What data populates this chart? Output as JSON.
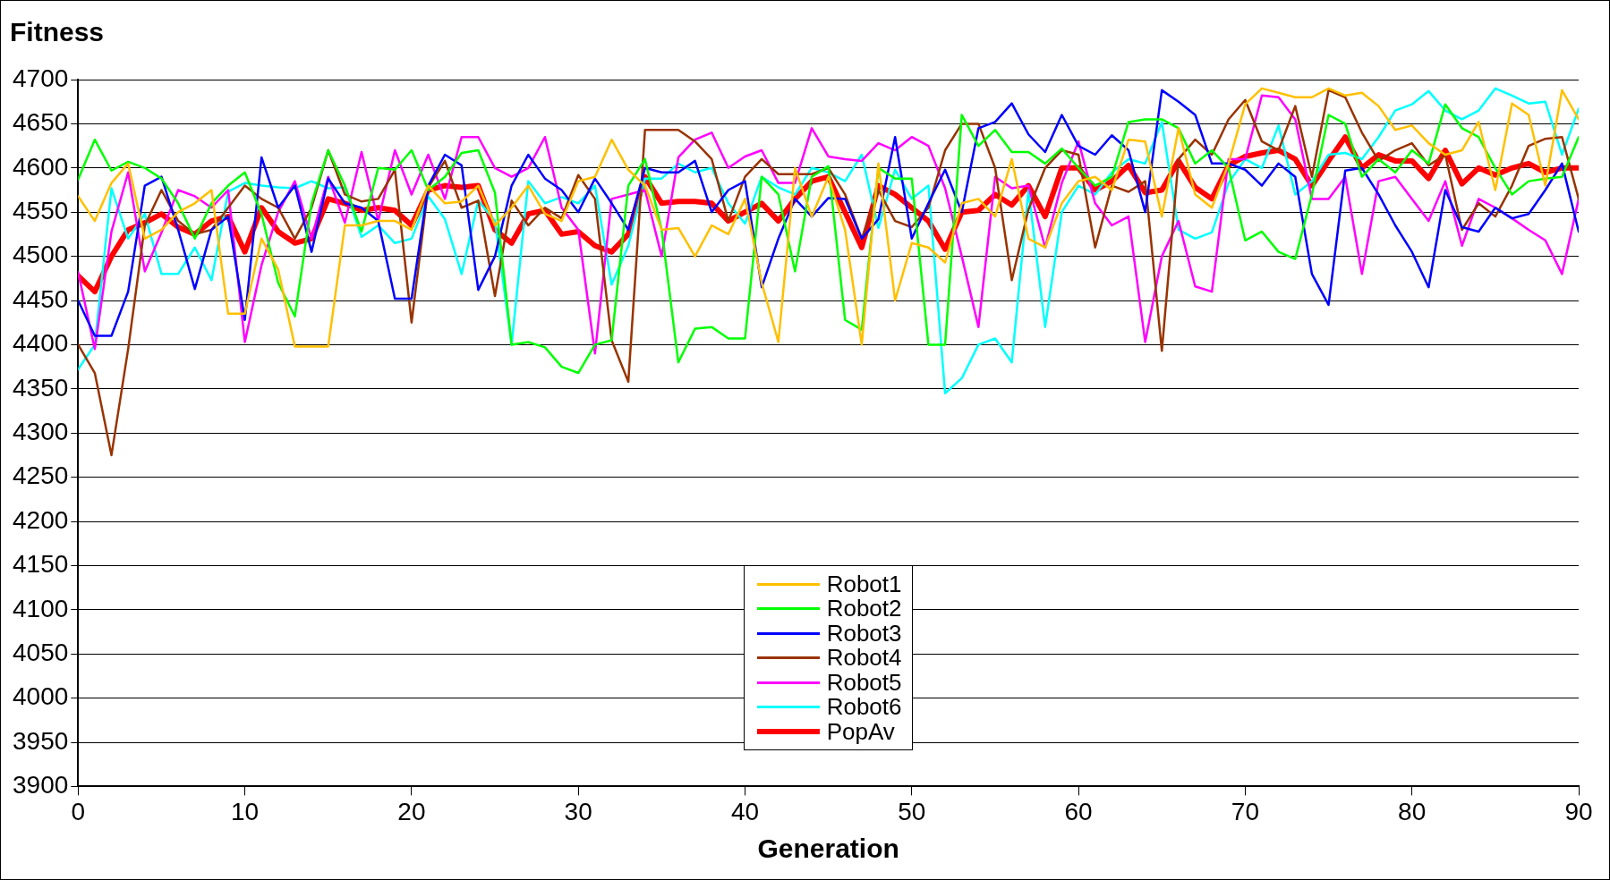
{
  "chart_data": {
    "type": "line",
    "xlabel": "Generation",
    "ylabel": "Fitness",
    "x": [
      0,
      1,
      2,
      3,
      4,
      5,
      6,
      7,
      8,
      9,
      10,
      11,
      12,
      13,
      14,
      15,
      16,
      17,
      18,
      19,
      20,
      21,
      22,
      23,
      24,
      25,
      26,
      27,
      28,
      29,
      30,
      31,
      32,
      33,
      34,
      35,
      36,
      37,
      38,
      39,
      40,
      41,
      42,
      43,
      44,
      45,
      46,
      47,
      48,
      49,
      50,
      51,
      52,
      53,
      54,
      55,
      56,
      57,
      58,
      59,
      60,
      61,
      62,
      63,
      64,
      65,
      66,
      67,
      68,
      69,
      70,
      71,
      72,
      73,
      74,
      75,
      76,
      77,
      78,
      79,
      80,
      81,
      82,
      83,
      84,
      85,
      86,
      87,
      88,
      89,
      90
    ],
    "xlim": [
      0,
      90
    ],
    "xticks": [
      0,
      10,
      20,
      30,
      40,
      50,
      60,
      70,
      80,
      90
    ],
    "ylim": [
      3900,
      4700
    ],
    "yticks": [
      3900,
      3950,
      4000,
      4050,
      4100,
      4150,
      4200,
      4250,
      4300,
      4350,
      4400,
      4450,
      4500,
      4550,
      4600,
      4650,
      4700
    ],
    "grid": "y",
    "legend": "bottom",
    "marker": "none",
    "line_style": "solid",
    "series": [
      {
        "name": "Robot1",
        "color": "#ffc000",
        "values": [
          4568,
          4540,
          4583,
          4605,
          4520,
          4530,
          4550,
          4560,
          4575,
          4435,
          4435,
          4520,
          4485,
          4398,
          4398,
          4398,
          4535,
          4535,
          4540,
          4540,
          4530,
          4580,
          4560,
          4562,
          4580,
          4535,
          4555,
          4580,
          4548,
          4540,
          4585,
          4590,
          4632,
          4598,
          4580,
          4530,
          4532,
          4500,
          4535,
          4525,
          4565,
          4470,
          4403,
          4600,
          4545,
          4590,
          4530,
          4400,
          4605,
          4450,
          4515,
          4510,
          4493,
          4560,
          4565,
          4545,
          4610,
          4520,
          4510,
          4560,
          4585,
          4590,
          4575,
          4632,
          4630,
          4545,
          4645,
          4570,
          4555,
          4605,
          4672,
          4690,
          4685,
          4680,
          4680,
          4690,
          4682,
          4685,
          4670,
          4643,
          4648,
          4628,
          4615,
          4620,
          4652,
          4575,
          4673,
          4660,
          4580,
          4688,
          4655
        ]
      },
      {
        "name": "Robot2",
        "color": "#00ff00",
        "values": [
          4587,
          4632,
          4597,
          4607,
          4600,
          4588,
          4560,
          4520,
          4560,
          4580,
          4595,
          4548,
          4470,
          4432,
          4560,
          4620,
          4580,
          4528,
          4600,
          4598,
          4620,
          4575,
          4590,
          4617,
          4620,
          4572,
          4400,
          4403,
          4397,
          4375,
          4368,
          4400,
          4405,
          4580,
          4610,
          4530,
          4380,
          4418,
          4420,
          4407,
          4407,
          4590,
          4570,
          4483,
          4590,
          4602,
          4428,
          4417,
          4600,
          4588,
          4588,
          4400,
          4400,
          4660,
          4625,
          4643,
          4618,
          4618,
          4605,
          4622,
          4600,
          4580,
          4590,
          4652,
          4655,
          4655,
          4645,
          4605,
          4620,
          4600,
          4518,
          4528,
          4505,
          4497,
          4570,
          4660,
          4650,
          4590,
          4610,
          4595,
          4620,
          4605,
          4672,
          4645,
          4635,
          4600,
          4570,
          4585,
          4588,
          4590,
          4635
        ]
      },
      {
        "name": "Robot3",
        "color": "#0000ff",
        "values": [
          4450,
          4410,
          4410,
          4460,
          4580,
          4590,
          4530,
          4463,
          4530,
          4545,
          4428,
          4612,
          4555,
          4580,
          4505,
          4588,
          4560,
          4555,
          4540,
          4452,
          4452,
          4580,
          4615,
          4603,
          4462,
          4500,
          4580,
          4615,
          4588,
          4575,
          4550,
          4588,
          4560,
          4530,
          4600,
          4595,
          4595,
          4608,
          4550,
          4575,
          4585,
          4465,
          4520,
          4565,
          4545,
          4566,
          4565,
          4520,
          4542,
          4635,
          4520,
          4560,
          4598,
          4550,
          4645,
          4652,
          4673,
          4638,
          4618,
          4660,
          4625,
          4615,
          4637,
          4620,
          4550,
          4688,
          4675,
          4660,
          4605,
          4605,
          4598,
          4580,
          4605,
          4590,
          4480,
          4445,
          4597,
          4600,
          4570,
          4535,
          4505,
          4465,
          4575,
          4533,
          4528,
          4555,
          4543,
          4548,
          4575,
          4605,
          4528
        ]
      },
      {
        "name": "Robot4",
        "color": "#993300",
        "values": [
          4400,
          4368,
          4275,
          4395,
          4535,
          4575,
          4540,
          4525,
          4530,
          4555,
          4580,
          4565,
          4555,
          4520,
          4555,
          4620,
          4570,
          4562,
          4565,
          4598,
          4425,
          4578,
          4608,
          4555,
          4563,
          4455,
          4563,
          4535,
          4555,
          4543,
          4592,
          4565,
          4405,
          4358,
          4643,
          4643,
          4643,
          4630,
          4610,
          4540,
          4590,
          4610,
          4593,
          4593,
          4593,
          4600,
          4570,
          4520,
          4575,
          4540,
          4533,
          4555,
          4620,
          4650,
          4650,
          4600,
          4473,
          4553,
          4600,
          4620,
          4615,
          4510,
          4580,
          4573,
          4585,
          4393,
          4610,
          4632,
          4615,
          4655,
          4677,
          4630,
          4620,
          4670,
          4590,
          4688,
          4680,
          4640,
          4608,
          4620,
          4628,
          4603,
          4615,
          4530,
          4560,
          4545,
          4580,
          4625,
          4633,
          4635,
          4565
        ]
      },
      {
        "name": "Robot5",
        "color": "#ff00ff",
        "values": [
          4482,
          4395,
          4528,
          4595,
          4483,
          4527,
          4575,
          4568,
          4555,
          4575,
          4403,
          4490,
          4550,
          4585,
          4520,
          4590,
          4538,
          4618,
          4540,
          4620,
          4570,
          4615,
          4565,
          4635,
          4635,
          4600,
          4590,
          4600,
          4635,
          4555,
          4530,
          4390,
          4565,
          4570,
          4575,
          4500,
          4612,
          4632,
          4640,
          4600,
          4613,
          4620,
          4583,
          4583,
          4645,
          4613,
          4610,
          4608,
          4628,
          4620,
          4635,
          4625,
          4577,
          4500,
          4420,
          4590,
          4577,
          4580,
          4510,
          4583,
          4630,
          4560,
          4535,
          4545,
          4403,
          4500,
          4540,
          4466,
          4460,
          4610,
          4610,
          4682,
          4680,
          4655,
          4565,
          4565,
          4590,
          4480,
          4585,
          4590,
          4565,
          4540,
          4585,
          4512,
          4565,
          4555,
          4543,
          4530,
          4518,
          4480,
          4565
        ]
      },
      {
        "name": "Robot6",
        "color": "#00ffff",
        "values": [
          4372,
          4400,
          4577,
          4520,
          4548,
          4480,
          4480,
          4510,
          4473,
          4573,
          4583,
          4580,
          4578,
          4577,
          4585,
          4577,
          4578,
          4522,
          4535,
          4515,
          4520,
          4568,
          4542,
          4480,
          4563,
          4540,
          4400,
          4585,
          4560,
          4567,
          4560,
          4580,
          4468,
          4512,
          4588,
          4588,
          4605,
          4595,
          4600,
          4560,
          4537,
          4590,
          4578,
          4570,
          4600,
          4595,
          4585,
          4615,
          4532,
          4598,
          4565,
          4580,
          4345,
          4362,
          4400,
          4407,
          4380,
          4575,
          4420,
          4550,
          4580,
          4570,
          4595,
          4610,
          4605,
          4652,
          4530,
          4520,
          4527,
          4583,
          4610,
          4600,
          4648,
          4570,
          4585,
          4615,
          4617,
          4610,
          4635,
          4665,
          4672,
          4687,
          4665,
          4655,
          4665,
          4690,
          4682,
          4673,
          4675,
          4615,
          4667
        ]
      },
      {
        "name": "PopAv",
        "color": "#ff0000",
        "values": [
          4478,
          4460,
          4500,
          4530,
          4538,
          4548,
          4533,
          4525,
          4540,
          4545,
          4505,
          4555,
          4528,
          4515,
          4520,
          4565,
          4560,
          4552,
          4555,
          4552,
          4535,
          4575,
          4580,
          4578,
          4580,
          4530,
          4515,
          4548,
          4552,
          4525,
          4528,
          4512,
          4505,
          4525,
          4590,
          4560,
          4562,
          4562,
          4560,
          4540,
          4550,
          4560,
          4540,
          4565,
          4585,
          4590,
          4550,
          4510,
          4580,
          4570,
          4555,
          4540,
          4508,
          4550,
          4552,
          4570,
          4558,
          4580,
          4545,
          4600,
          4600,
          4575,
          4585,
          4603,
          4572,
          4575,
          4608,
          4578,
          4565,
          4603,
          4613,
          4617,
          4620,
          4610,
          4580,
          4608,
          4635,
          4600,
          4615,
          4608,
          4608,
          4588,
          4620,
          4582,
          4600,
          4592,
          4600,
          4605,
          4595,
          4600,
          4600
        ]
      }
    ]
  }
}
